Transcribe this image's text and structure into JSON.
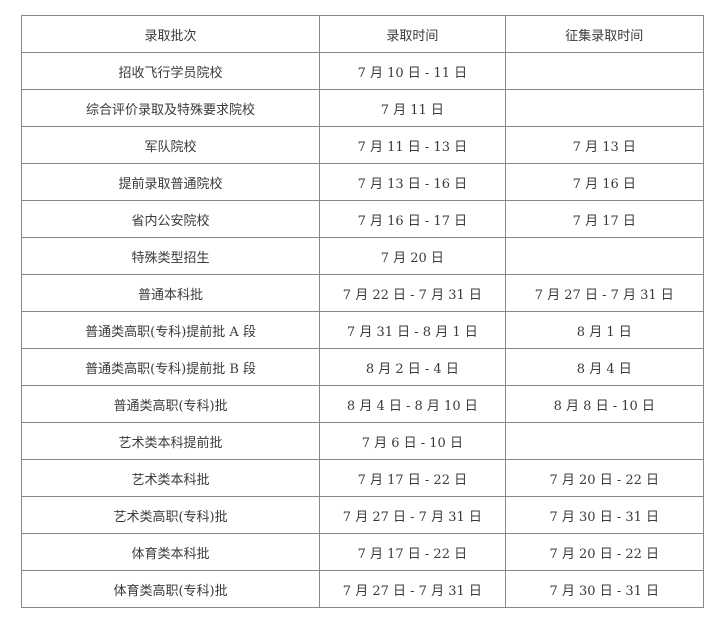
{
  "headers": [
    "录取批次",
    "录取时间",
    "征集录取时间"
  ],
  "rows": [
    [
      "招收飞行学员院校",
      "7 月 10 日 - 11 日",
      ""
    ],
    [
      "综合评价录取及特殊要求院校",
      "7 月 11 日",
      ""
    ],
    [
      "军队院校",
      "7 月 11 日 - 13 日",
      "7 月 13 日"
    ],
    [
      "提前录取普通院校",
      "7 月 13 日 - 16 日",
      "7 月 16 日"
    ],
    [
      "省内公安院校",
      "7 月 16 日 - 17 日",
      "7 月 17 日"
    ],
    [
      "特殊类型招生",
      "7 月 20 日",
      ""
    ],
    [
      "普通本科批",
      "7 月 22 日 - 7 月 31 日",
      "7 月 27 日 - 7 月 31 日"
    ],
    [
      "普通类高职(专科)提前批 A 段",
      "7 月 31 日 - 8 月 1 日",
      "8 月 1 日"
    ],
    [
      "普通类高职(专科)提前批 B 段",
      "8 月 2 日 - 4 日",
      "8 月 4 日"
    ],
    [
      "普通类高职(专科)批",
      "8 月 4 日 - 8 月 10 日",
      "8 月 8 日 - 10 日"
    ],
    [
      "艺术类本科提前批",
      "7 月 6 日 - 10 日",
      ""
    ],
    [
      "艺术类本科批",
      "7 月 17 日 - 22 日",
      "7 月 20 日 - 22 日"
    ],
    [
      "艺术类高职(专科)批",
      "7 月 27 日 - 7 月 31 日",
      "7 月 30 日 - 31 日"
    ],
    [
      "体育类本科批",
      "7 月 17 日 - 22 日",
      "7 月 20 日 - 22 日"
    ],
    [
      "体育类高职(专科)批",
      "7 月 27 日 - 7 月 31 日",
      "7 月 30 日 - 31 日"
    ]
  ]
}
